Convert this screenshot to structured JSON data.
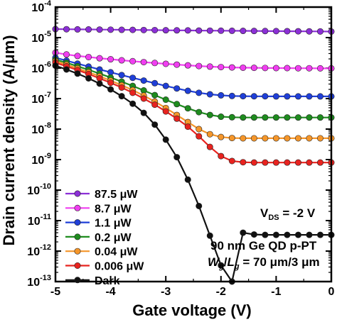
{
  "chart_data": {
    "type": "line",
    "title": "",
    "xlabel": "Gate voltage (V)",
    "ylabel": "Drain current density (A/μm)",
    "xlim": [
      -5,
      0
    ],
    "ylim_log10": [
      -13,
      -4
    ],
    "y_scale": "log",
    "x_ticks": [
      -5,
      -4,
      -3,
      -2,
      -1,
      0
    ],
    "x_tick_labels": [
      "-5",
      "-4",
      "-3",
      "-2",
      "-1",
      "0"
    ],
    "y_ticks_exponents": [
      -13,
      -12,
      -11,
      -10,
      -9,
      -8,
      -7,
      -6,
      -5,
      -4
    ],
    "y_tick_base": "10",
    "legend_position": "left-bottom",
    "x": [
      -5.0,
      -4.8,
      -4.6,
      -4.4,
      -4.2,
      -4.0,
      -3.8,
      -3.6,
      -3.4,
      -3.2,
      -3.0,
      -2.8,
      -2.6,
      -2.4,
      -2.2,
      -2.0,
      -1.8,
      -1.6,
      -1.4,
      -1.2,
      -1.0,
      -0.8,
      -0.6,
      -0.4,
      -0.2,
      0.0
    ],
    "series": [
      {
        "name": "87.5 μW",
        "color": "#8b2fd6",
        "values": [
          1.9e-05,
          1.88e-05,
          1.86e-05,
          1.85e-05,
          1.83e-05,
          1.82e-05,
          1.8e-05,
          1.79e-05,
          1.77e-05,
          1.76e-05,
          1.74e-05,
          1.73e-05,
          1.72e-05,
          1.7e-05,
          1.69e-05,
          1.68e-05,
          1.67e-05,
          1.66e-05,
          1.65e-05,
          1.64e-05,
          1.63e-05,
          1.62e-05,
          1.61e-05,
          1.6e-05,
          1.59e-05,
          1.58e-05
        ]
      },
      {
        "name": "8.7 μW",
        "color": "#f03ef0",
        "values": [
          3.2e-06,
          2.8e-06,
          2.5e-06,
          2.3e-06,
          2.1e-06,
          1.95e-06,
          1.8e-06,
          1.68e-06,
          1.57e-06,
          1.47e-06,
          1.38e-06,
          1.3e-06,
          1.23e-06,
          1.17e-06,
          1.12e-06,
          1.08e-06,
          1.05e-06,
          1.03e-06,
          1.02e-06,
          1.01e-06,
          1e-06,
          1e-06,
          9.9e-07,
          9.9e-07,
          9.8e-07,
          9.8e-07
        ]
      },
      {
        "name": "1.1 μW",
        "color": "#1f3fd8",
        "values": [
          2.2e-06,
          1.75e-06,
          1.4e-06,
          1.12e-06,
          9e-07,
          7.3e-07,
          5.9e-07,
          4.8e-07,
          3.9e-07,
          3.2e-07,
          2.6e-07,
          2.15e-07,
          1.8e-07,
          1.55e-07,
          1.38e-07,
          1.28e-07,
          1.22e-07,
          1.2e-07,
          1.19e-07,
          1.19e-07,
          1.18e-07,
          1.18e-07,
          1.18e-07,
          1.18e-07,
          1.18e-07,
          1.18e-07
        ]
      },
      {
        "name": "0.2 μW",
        "color": "#1e8c1e",
        "values": [
          1.9e-06,
          1.5e-06,
          1.15e-06,
          8.8e-07,
          6.6e-07,
          4.9e-07,
          3.6e-07,
          2.6e-07,
          1.85e-07,
          1.3e-07,
          9.2e-08,
          6.6e-08,
          4.8e-08,
          3.6e-08,
          2.9e-08,
          2.55e-08,
          2.45e-08,
          2.4e-08,
          2.4e-08,
          2.4e-08,
          2.4e-08,
          2.4e-08,
          2.4e-08,
          2.4e-08,
          2.4e-08,
          2.4e-08
        ]
      },
      {
        "name": "0.04 μW",
        "color": "#f5962a",
        "values": [
          1.7e-06,
          1.3e-06,
          9.8e-07,
          7.3e-07,
          5.4e-07,
          3.9e-07,
          2.75e-07,
          1.9e-07,
          1.25e-07,
          8e-08,
          4.9e-08,
          2.9e-08,
          1.7e-08,
          1e-08,
          6.8e-09,
          5.5e-09,
          5.1e-09,
          5e-09,
          5e-09,
          5e-09,
          5e-09,
          5e-09,
          5e-09,
          5e-09,
          5e-09,
          5e-09
        ]
      },
      {
        "name": "0.006 μW",
        "color": "#e8231f",
        "values": [
          1.5e-06,
          1.15e-06,
          8.6e-07,
          6.4e-07,
          4.6e-07,
          3.3e-07,
          2.3e-07,
          1.55e-07,
          1e-07,
          6.3e-08,
          3.8e-08,
          2.2e-08,
          1.2e-08,
          5.8e-09,
          2.6e-09,
          1.3e-09,
          9e-10,
          8.2e-10,
          8e-10,
          8e-10,
          8e-10,
          8e-10,
          8e-10,
          8e-10,
          8e-10,
          8e-10
        ]
      },
      {
        "name": "Dark",
        "color": "#111111",
        "values": [
          1.2e-06,
          9e-07,
          6.6e-07,
          4.6e-07,
          3.1e-07,
          2e-07,
          1.2e-07,
          6.8e-08,
          3.4e-08,
          1.4e-08,
          4.5e-09,
          1.2e-09,
          2.2e-10,
          3e-11,
          3.2e-12,
          3.4e-13,
          3.2e-14,
          4e-12,
          3.5e-12,
          3.4e-12,
          3.4e-12,
          3.4e-12,
          3.4e-12,
          3.4e-12,
          3.4e-12,
          3.4e-12
        ]
      }
    ],
    "annotations": {
      "vds_main": "V",
      "vds_sub": "DS",
      "vds_value": " = -2 V",
      "device": "90 nm Ge QD p-PT",
      "w_main": "W",
      "w_sub": "g",
      "slash": "/",
      "l_main": "L",
      "l_sub": "g",
      "w_value": " = 70 μm/3 μm"
    }
  }
}
